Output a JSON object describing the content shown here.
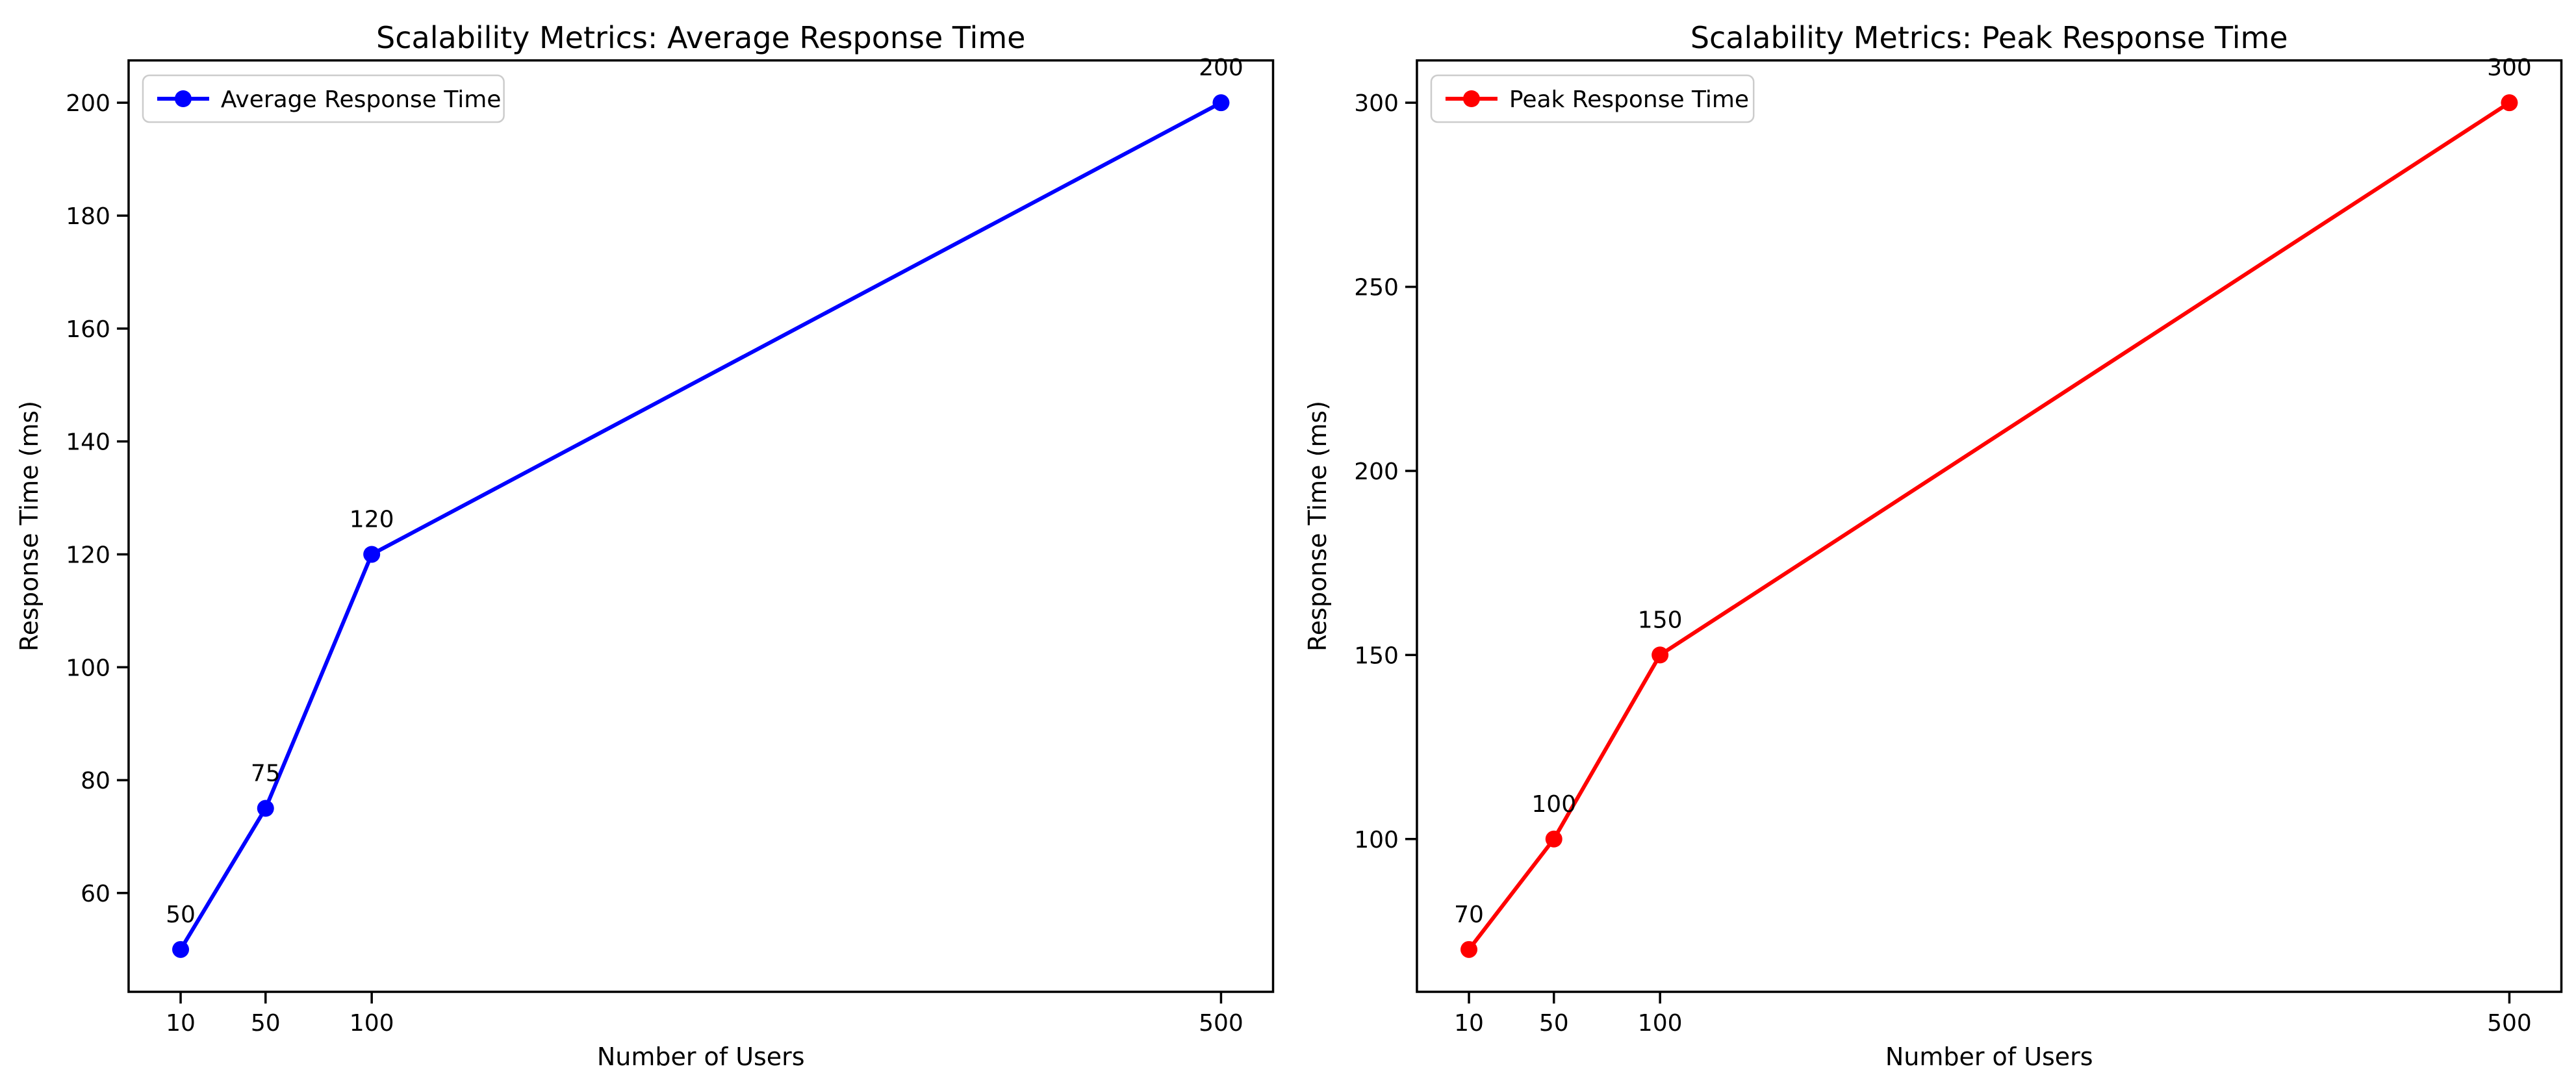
{
  "figure": {
    "background": "#ffffff",
    "text_color": "#000000",
    "legend_border_color": "#cccccc"
  },
  "chart_data": [
    {
      "type": "line",
      "title": "Scalability Metrics: Average Response Time",
      "xlabel": "Number of Users",
      "ylabel": "Response Time (ms)",
      "legend_label": "Average Response Time",
      "legend_position": "upper left",
      "grid": false,
      "line_color": "#0000ff",
      "marker": "circle",
      "x": [
        10,
        50,
        100,
        500
      ],
      "values": [
        50,
        75,
        120,
        200
      ],
      "point_labels": [
        "50",
        "75",
        "120",
        "200"
      ],
      "xticks": [
        10,
        50,
        100,
        500
      ],
      "yticks": [
        60,
        80,
        100,
        120,
        140,
        160,
        180,
        200
      ],
      "xlim": [
        -14.5,
        524.5
      ],
      "ylim": [
        42.5,
        207.5
      ]
    },
    {
      "type": "line",
      "title": "Scalability Metrics: Peak Response Time",
      "xlabel": "Number of Users",
      "ylabel": "Response Time (ms)",
      "legend_label": "Peak Response Time",
      "legend_position": "upper left",
      "grid": false,
      "line_color": "#ff0000",
      "marker": "circle",
      "x": [
        10,
        50,
        100,
        500
      ],
      "values": [
        70,
        100,
        150,
        300
      ],
      "point_labels": [
        "70",
        "100",
        "150",
        "300"
      ],
      "xticks": [
        10,
        50,
        100,
        500
      ],
      "yticks": [
        100,
        150,
        200,
        250,
        300
      ],
      "xlim": [
        -14.5,
        524.5
      ],
      "ylim": [
        58.5,
        311.5
      ]
    }
  ]
}
